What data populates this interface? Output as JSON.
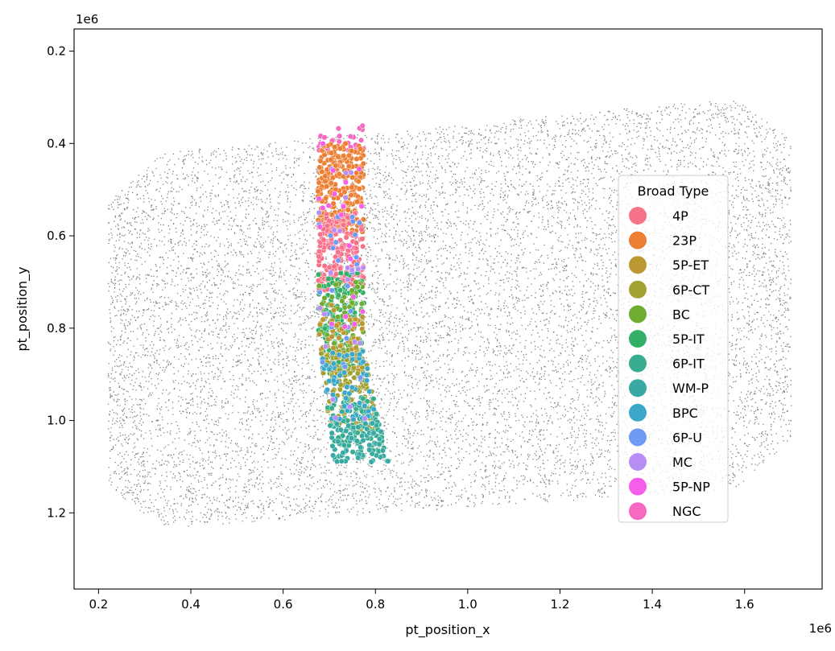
{
  "chart_data": {
    "type": "scatter",
    "title": "",
    "xlabel": "pt_position_x",
    "ylabel": "pt_position_y",
    "x_scale_label": "1e6",
    "y_scale_label": "1e6",
    "xlim": [
      0.147,
      1.768
    ],
    "ylim": [
      1.365,
      0.152
    ],
    "y_inverted": true,
    "x_ticks": [
      "0.2",
      "0.4",
      "0.6",
      "0.8",
      "1.0",
      "1.2",
      "1.4",
      "1.6"
    ],
    "y_ticks": [
      "0.2",
      "0.4",
      "0.6",
      "0.8",
      "1.0",
      "1.2"
    ],
    "background_series": {
      "name": "",
      "color": "#808080",
      "x_range": [
        0.22,
        1.7
      ],
      "y_range": [
        0.29,
        1.24
      ],
      "description_points": "dense uniform cloud of small gray points"
    },
    "highlight_region": {
      "x_range": [
        0.67,
        0.83
      ],
      "y_range": [
        0.36,
        1.09
      ]
    },
    "legend": {
      "title": "Broad Type",
      "placement": "right",
      "entries": [
        {
          "name": "4P",
          "color": "#f77189"
        },
        {
          "name": "23P",
          "color": "#ed7f33"
        },
        {
          "name": "5P-ET",
          "color": "#bb9832"
        },
        {
          "name": "6P-CT",
          "color": "#a3a131"
        },
        {
          "name": "BC",
          "color": "#6fac32"
        },
        {
          "name": "5P-IT",
          "color": "#33b067"
        },
        {
          "name": "6P-IT",
          "color": "#36ad8e"
        },
        {
          "name": "WM-P",
          "color": "#38aaa3"
        },
        {
          "name": "BPC",
          "color": "#3ba7c9"
        },
        {
          "name": "6P-U",
          "color": "#6e9bf4"
        },
        {
          "name": "MC",
          "color": "#b88ef5"
        },
        {
          "name": "5P-NP",
          "color": "#f45ee9"
        },
        {
          "name": "NGC",
          "color": "#f668c2"
        }
      ]
    },
    "highlight_bands": [
      {
        "name": "NGC",
        "y_range": [
          0.36,
          0.42
        ]
      },
      {
        "name": "23P",
        "y_range": [
          0.4,
          0.6
        ]
      },
      {
        "name": "4P",
        "y_range": [
          0.55,
          0.72
        ]
      },
      {
        "name": "5P-IT",
        "y_range": [
          0.68,
          0.9
        ]
      },
      {
        "name": "BC",
        "y_range": [
          0.7,
          0.9
        ]
      },
      {
        "name": "5P-ET",
        "y_range": [
          0.75,
          0.9
        ]
      },
      {
        "name": "6P-CT",
        "y_range": [
          0.85,
          1.02
        ]
      },
      {
        "name": "6P-IT",
        "y_range": [
          0.95,
          1.08
        ]
      },
      {
        "name": "WM-P",
        "y_range": [
          1.0,
          1.09
        ]
      },
      {
        "name": "BPC",
        "y_range": [
          0.85,
          1.0
        ]
      },
      {
        "name": "6P-U",
        "y_range": [
          0.55,
          0.95
        ]
      },
      {
        "name": "MC",
        "y_range": [
          0.45,
          1.0
        ]
      },
      {
        "name": "5P-NP",
        "y_range": [
          0.4,
          0.8
        ]
      }
    ]
  }
}
